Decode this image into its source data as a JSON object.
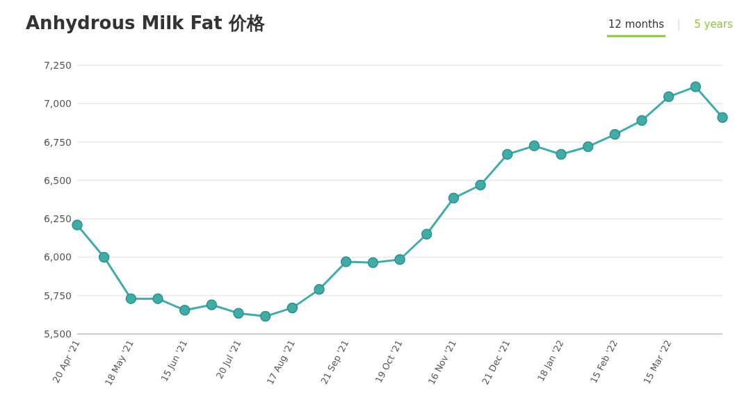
{
  "chart_data": {
    "type": "line",
    "title": "Anhydrous Milk Fat 价格",
    "annotations": [
      "12 months",
      "5 years"
    ],
    "categories": [
      "20 Apr '21",
      null,
      "18 May '21",
      null,
      "15 Jun '21",
      null,
      "20 Jul '21",
      null,
      "17 Aug '21",
      null,
      "21 Sep '21",
      null,
      "19 Oct '21",
      null,
      "16 Nov '21",
      null,
      "21 Dec '21",
      null,
      "18 Jan '22",
      null,
      "15 Feb '22",
      null,
      "15 Mar '22",
      null,
      null
    ],
    "values": [
      6210,
      6000,
      5730,
      5730,
      5655,
      5690,
      5635,
      5615,
      5670,
      5790,
      5970,
      5965,
      5985,
      6150,
      6385,
      6470,
      6670,
      6725,
      6670,
      6720,
      6800,
      6890,
      7045,
      7110,
      6910
    ],
    "color": "#40aca8",
    "ylim": [
      5500,
      7250
    ],
    "yticks": [
      {
        "value": 5500,
        "label": "5,500"
      },
      {
        "value": 5750,
        "label": "5,750"
      },
      {
        "value": 6000,
        "label": "6,000"
      },
      {
        "value": 6250,
        "label": "6,250"
      },
      {
        "value": 6500,
        "label": "6,500"
      },
      {
        "value": 6750,
        "label": "6,750"
      },
      {
        "value": 7000,
        "label": "7,000"
      },
      {
        "value": 7250,
        "label": "7,250"
      }
    ],
    "grid": "y",
    "marker": "circle"
  }
}
